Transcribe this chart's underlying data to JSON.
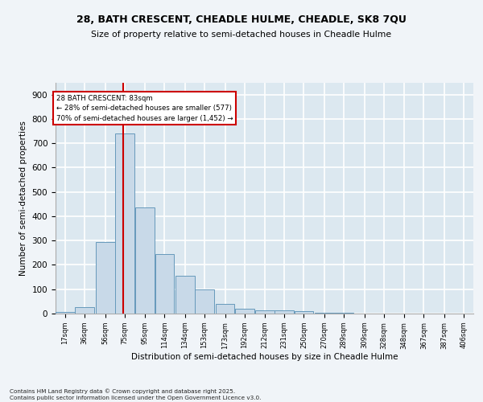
{
  "title1": "28, BATH CRESCENT, CHEADLE HULME, CHEADLE, SK8 7QU",
  "title2": "Size of property relative to semi-detached houses in Cheadle Hulme",
  "xlabel": "Distribution of semi-detached houses by size in Cheadle Hulme",
  "ylabel": "Number of semi-detached properties",
  "bin_labels": [
    "17sqm",
    "36sqm",
    "56sqm",
    "75sqm",
    "95sqm",
    "114sqm",
    "134sqm",
    "153sqm",
    "173sqm",
    "192sqm",
    "212sqm",
    "231sqm",
    "250sqm",
    "270sqm",
    "289sqm",
    "309sqm",
    "328sqm",
    "348sqm",
    "367sqm",
    "387sqm",
    "406sqm"
  ],
  "bin_edges": [
    17,
    36,
    56,
    75,
    95,
    114,
    134,
    153,
    173,
    192,
    212,
    231,
    250,
    270,
    289,
    309,
    328,
    348,
    367,
    387,
    406
  ],
  "bar_heights": [
    8,
    25,
    295,
    740,
    435,
    243,
    155,
    98,
    40,
    20,
    14,
    12,
    10,
    4,
    2,
    1,
    1,
    0,
    0,
    0
  ],
  "bar_color": "#c8d9e8",
  "bar_edge_color": "#6699bb",
  "property_size": 83,
  "vline_color": "#cc0000",
  "annotation_box_color": "#cc0000",
  "annotation_text1": "28 BATH CRESCENT: 83sqm",
  "annotation_text2": "← 28% of semi-detached houses are smaller (577)",
  "annotation_text3": "70% of semi-detached houses are larger (1,452) →",
  "ylim": [
    0,
    950
  ],
  "yticks": [
    0,
    100,
    200,
    300,
    400,
    500,
    600,
    700,
    800,
    900
  ],
  "background_color": "#dce8f0",
  "grid_color": "#ffffff",
  "fig_bg_color": "#f0f4f8",
  "footer1": "Contains HM Land Registry data © Crown copyright and database right 2025.",
  "footer2": "Contains public sector information licensed under the Open Government Licence v3.0."
}
